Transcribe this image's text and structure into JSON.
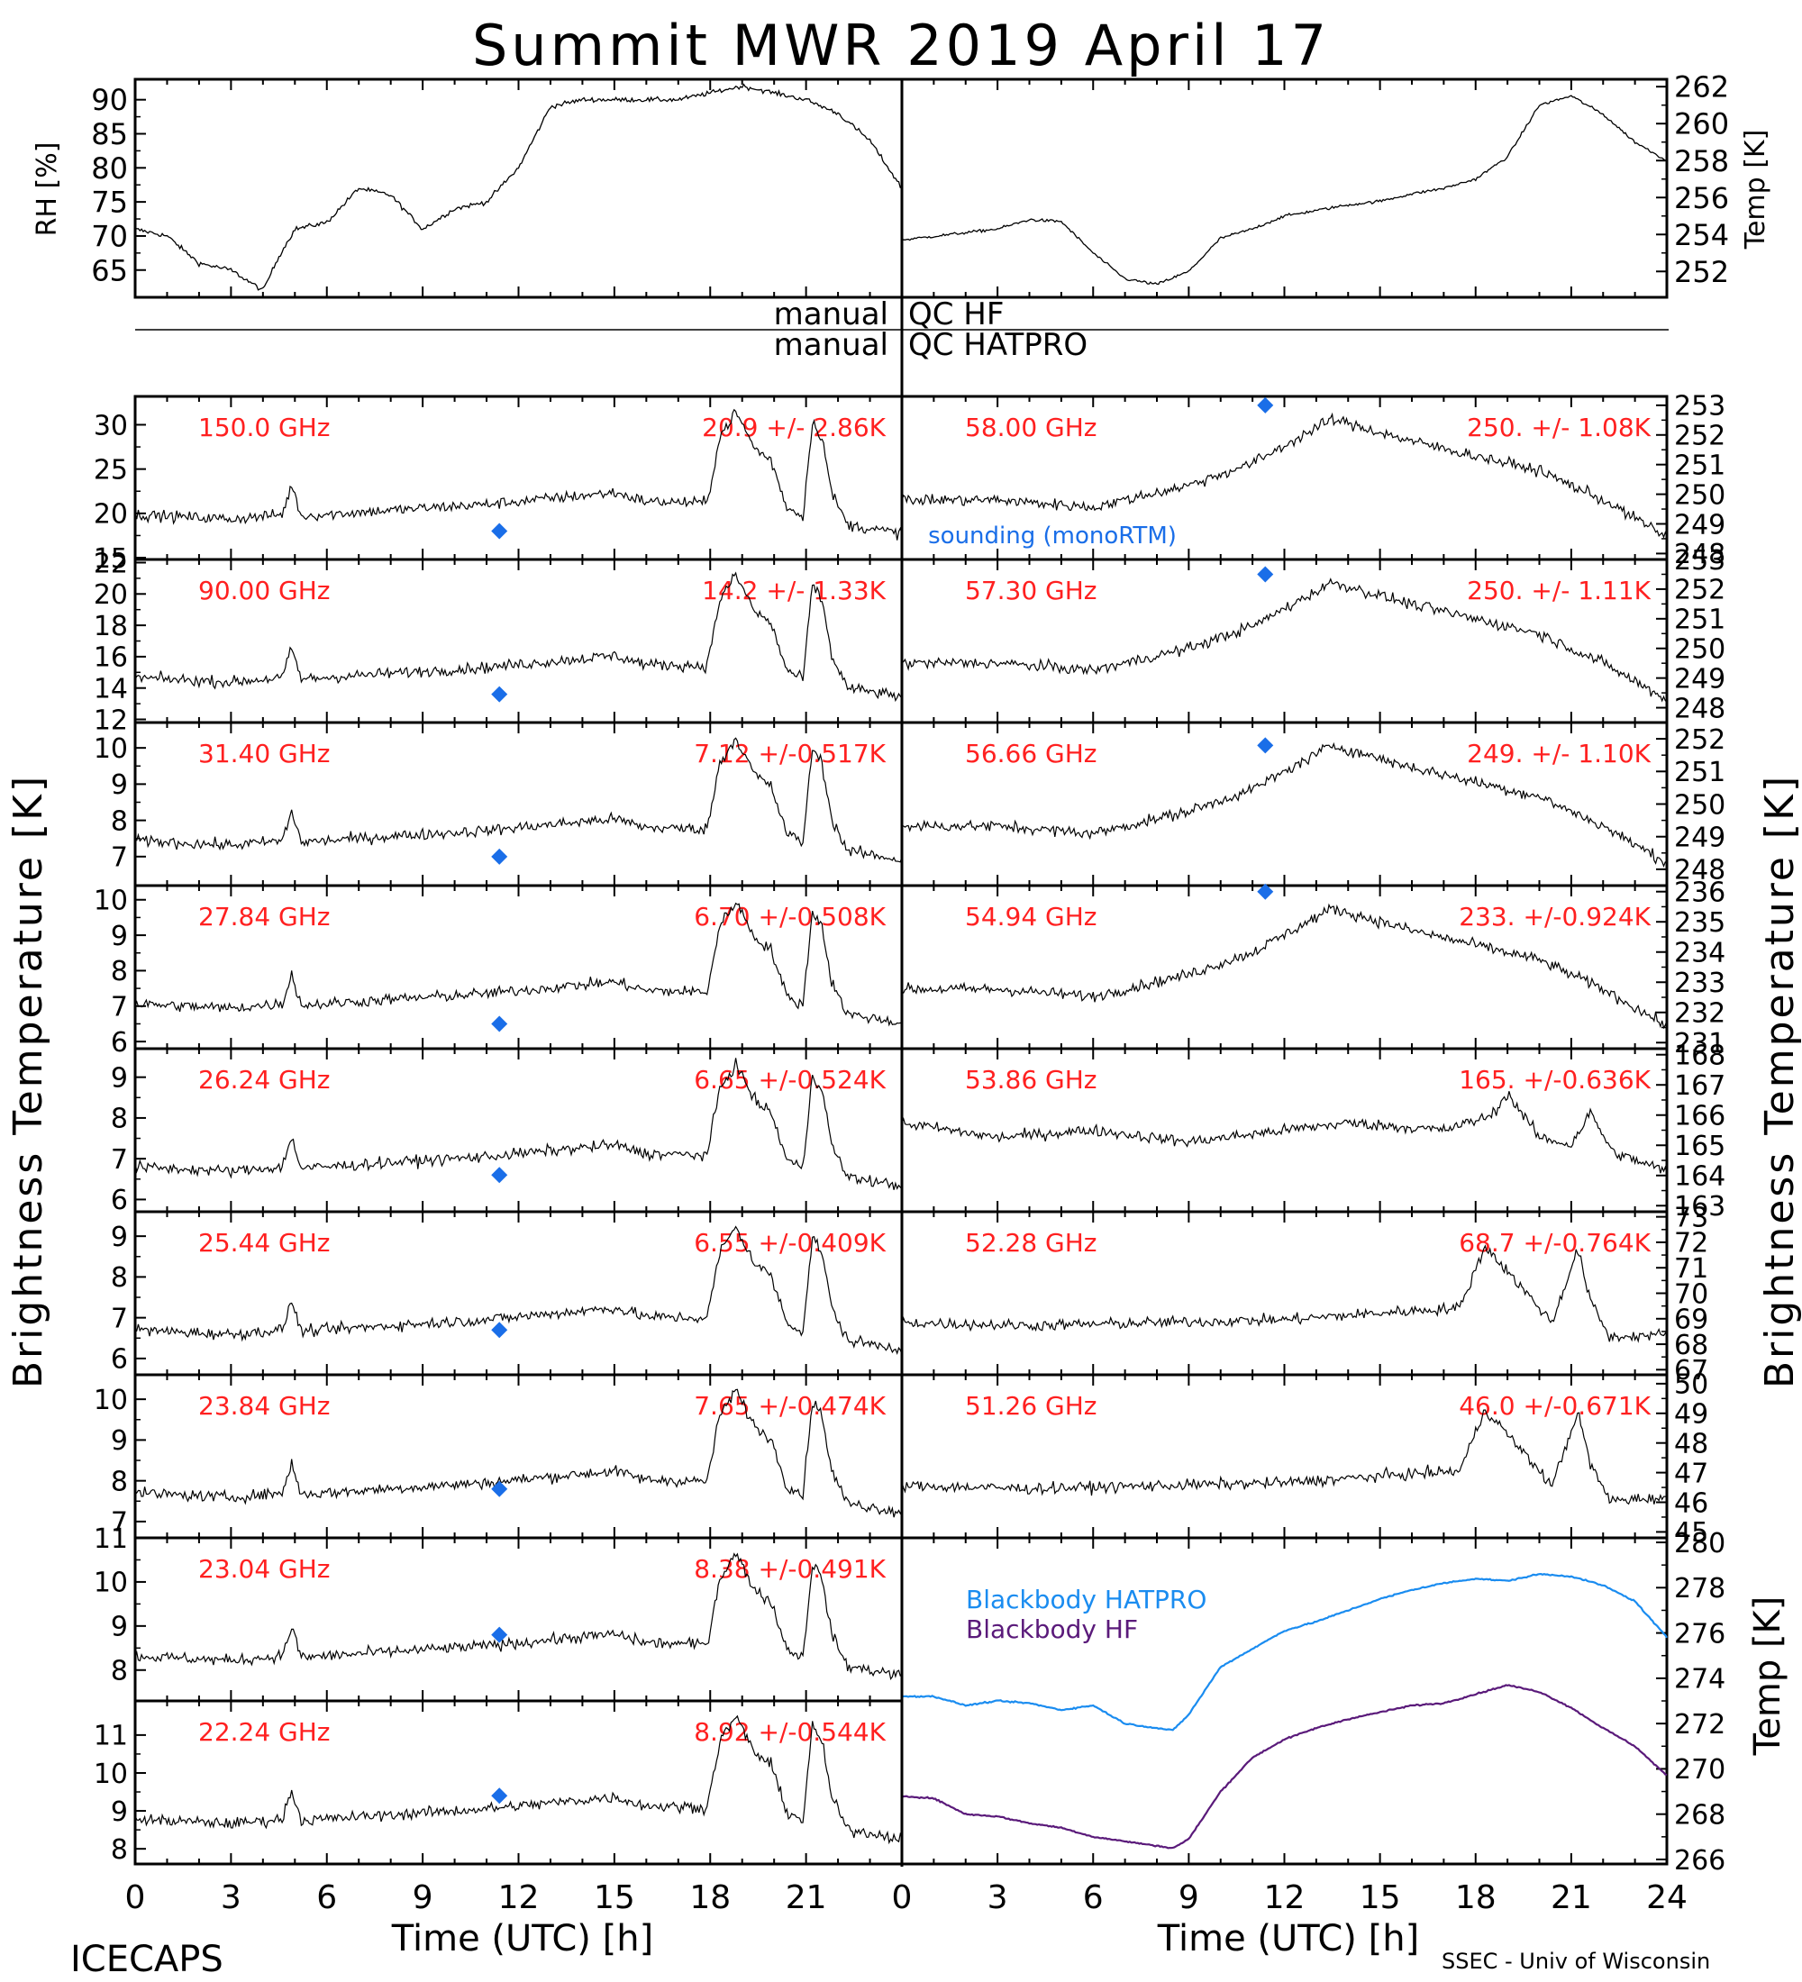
{
  "title": "Summit MWR 2019 April 17",
  "footer_left": "ICECAPS",
  "footer_right": "SSEC - Univ of Wisconsin",
  "x_axis": {
    "label": "Time (UTC) [h]",
    "ticks_left": [
      "0",
      "3",
      "6",
      "9",
      "12",
      "15",
      "18",
      "21"
    ],
    "ticks_right": [
      "0",
      "3",
      "6",
      "9",
      "12",
      "15",
      "18",
      "21",
      "24"
    ],
    "range": [
      0,
      24
    ]
  },
  "left_ylabel": "Brightness Temperature [K]",
  "right_ylabel": "Brightness Temperature [K]",
  "colors": {
    "line": "#000000",
    "annotation": "#ff2020",
    "marker": "#1a6ee8",
    "hatpro": "#1a8cf0",
    "hf": "#5a1a7a"
  },
  "top_panel": {
    "left": {
      "ylabel": "RH [%]",
      "ylim": [
        61,
        93
      ],
      "ticks": [
        "65",
        "70",
        "75",
        "80",
        "85",
        "90"
      ]
    },
    "right": {
      "ylabel": "Temp [K]",
      "ylim": [
        250.6,
        262.4
      ],
      "ticks": [
        "252",
        "254",
        "256",
        "258",
        "260",
        "262"
      ]
    }
  },
  "qc_labels": {
    "hf_prefix": "manual",
    "hf_suffix": "QC HF",
    "hatpro_prefix": "manual",
    "hatpro_suffix": "QC HATPRO"
  },
  "sounding_label": "sounding (monoRTM)",
  "blackbody": {
    "ylabel": "Temp [K]",
    "ylim": [
      265.8,
      280.2
    ],
    "ticks": [
      "266",
      "268",
      "270",
      "272",
      "274",
      "276",
      "278",
      "280"
    ],
    "hatpro_label": "Blackbody HATPRO",
    "hf_label": "Blackbody HF"
  },
  "channels_left": [
    {
      "freq": "150.0 GHz",
      "stat": "20.9 +/-  2.86K",
      "ylim": [
        14.8,
        33.2
      ],
      "ticks": [
        "15",
        "20",
        "25",
        "30"
      ],
      "sounding": 18.0
    },
    {
      "freq": "90.00 GHz",
      "stat": "14.2 +/-  1.33K",
      "ylim": [
        11.8,
        22.2
      ],
      "ticks": [
        "12",
        "14",
        "16",
        "18",
        "20",
        "22"
      ],
      "sounding": 13.6
    },
    {
      "freq": "31.40 GHz",
      "stat": "7.12 +/-0.517K",
      "ylim": [
        6.2,
        10.7
      ],
      "ticks": [
        "7",
        "8",
        "9",
        "10"
      ],
      "sounding": 7.0
    },
    {
      "freq": "27.84 GHz",
      "stat": "6.70 +/-0.508K",
      "ylim": [
        5.8,
        10.4
      ],
      "ticks": [
        "6",
        "7",
        "8",
        "9",
        "10"
      ],
      "sounding": 6.5
    },
    {
      "freq": "26.24 GHz",
      "stat": "6.65 +/-0.524K",
      "ylim": [
        5.7,
        9.7
      ],
      "ticks": [
        "6",
        "7",
        "8",
        "9"
      ],
      "sounding": 6.6
    },
    {
      "freq": "25.44 GHz",
      "stat": "6.55 +/-0.409K",
      "ylim": [
        5.6,
        9.6
      ],
      "ticks": [
        "6",
        "7",
        "8",
        "9"
      ],
      "sounding": 6.7
    },
    {
      "freq": "23.84 GHz",
      "stat": "7.65 +/-0.474K",
      "ylim": [
        6.6,
        10.6
      ],
      "ticks": [
        "7",
        "8",
        "9",
        "10"
      ],
      "sounding": 7.8
    },
    {
      "freq": "23.04 GHz",
      "stat": "8.38 +/-0.491K",
      "ylim": [
        7.3,
        11.0
      ],
      "ticks": [
        "8",
        "9",
        "10",
        "11"
      ],
      "sounding": 8.8
    },
    {
      "freq": "22.24 GHz",
      "stat": "8.92 +/-0.544K",
      "ylim": [
        7.6,
        11.9
      ],
      "ticks": [
        "8",
        "9",
        "10",
        "11"
      ],
      "sounding": 9.4
    }
  ],
  "channels_right": [
    {
      "freq": "58.00 GHz",
      "stat": "250. +/- 1.08K",
      "ylim": [
        247.8,
        253.3
      ],
      "ticks": [
        "248",
        "249",
        "250",
        "251",
        "252",
        "253"
      ],
      "sounding": 253.0
    },
    {
      "freq": "57.30 GHz",
      "stat": "250. +/- 1.11K",
      "ylim": [
        247.5,
        253.0
      ],
      "ticks": [
        "248",
        "249",
        "250",
        "251",
        "252",
        "253"
      ],
      "sounding": 252.5
    },
    {
      "freq": "56.66 GHz",
      "stat": "249. +/- 1.10K",
      "ylim": [
        247.5,
        252.5
      ],
      "ticks": [
        "248",
        "249",
        "250",
        "251",
        "252"
      ],
      "sounding": 251.8
    },
    {
      "freq": "54.94 GHz",
      "stat": "233. +/-0.924K",
      "ylim": [
        230.8,
        236.2
      ],
      "ticks": [
        "231",
        "232",
        "233",
        "234",
        "235",
        "236"
      ],
      "sounding": 236.0
    },
    {
      "freq": "53.86 GHz",
      "stat": "165. +/-0.636K",
      "ylim": [
        162.8,
        168.2
      ],
      "ticks": [
        "163",
        "164",
        "165",
        "166",
        "167",
        "168"
      ],
      "sounding": null
    },
    {
      "freq": "52.28 GHz",
      "stat": "68.7 +/-0.764K",
      "ylim": [
        66.8,
        73.2
      ],
      "ticks": [
        "67",
        "68",
        "69",
        "70",
        "71",
        "72",
        "73"
      ],
      "sounding": null
    },
    {
      "freq": "51.26 GHz",
      "stat": "46.0 +/-0.671K",
      "ylim": [
        44.8,
        50.3
      ],
      "ticks": [
        "45",
        "46",
        "47",
        "48",
        "49",
        "50"
      ],
      "sounding": null
    }
  ],
  "chart_data": [
    {
      "type": "line",
      "panel": "relative-humidity",
      "ylabel": "RH [%]",
      "ylim": [
        61,
        93
      ],
      "x": [
        0,
        1,
        2,
        3,
        4,
        4.5,
        5,
        6,
        7,
        8,
        9,
        10,
        11,
        12,
        13,
        14,
        15,
        16,
        17,
        18,
        19,
        20,
        21,
        22,
        23,
        24
      ],
      "values": [
        71,
        70,
        66,
        65,
        62,
        67,
        71,
        72,
        77,
        76,
        71,
        74,
        75,
        80,
        89,
        90,
        90,
        90,
        90,
        91,
        92,
        91,
        90,
        88,
        84,
        77
      ]
    },
    {
      "type": "line",
      "panel": "air-temperature",
      "ylabel": "Temp [K]",
      "ylim": [
        250.6,
        262.4
      ],
      "x": [
        0,
        1,
        2,
        3,
        4,
        5,
        6,
        7,
        8,
        9,
        10,
        11,
        12,
        13,
        14,
        15,
        16,
        17,
        18,
        19,
        20,
        21,
        22,
        23,
        24
      ],
      "values": [
        253.7,
        253.9,
        254.1,
        254.3,
        254.8,
        254.7,
        253.0,
        251.6,
        251.3,
        252.0,
        253.8,
        254.3,
        255.0,
        255.3,
        255.6,
        255.8,
        256.2,
        256.5,
        257.0,
        258.2,
        261.0,
        261.5,
        260.5,
        259.0,
        258.0
      ]
    },
    {
      "type": "line",
      "panel": "blackbody",
      "ylabel": "Temp [K]",
      "ylim": [
        265.8,
        280.2
      ],
      "x": [
        0,
        1,
        2,
        3,
        4,
        5,
        6,
        7,
        8,
        8.5,
        9,
        10,
        11,
        12,
        13,
        14,
        15,
        16,
        17,
        18,
        19,
        20,
        21,
        22,
        23,
        24
      ],
      "series": [
        {
          "name": "Blackbody HATPRO",
          "values": [
            273.2,
            273.2,
            272.8,
            273.0,
            272.9,
            272.6,
            272.8,
            272.0,
            271.8,
            271.7,
            272.4,
            274.5,
            275.3,
            276.1,
            276.5,
            277.0,
            277.5,
            277.9,
            278.2,
            278.4,
            278.3,
            278.6,
            278.5,
            278.1,
            277.4,
            275.8
          ]
        },
        {
          "name": "Blackbody HF",
          "values": [
            268.8,
            268.7,
            268.0,
            267.9,
            267.6,
            267.4,
            267.0,
            266.8,
            266.6,
            266.5,
            266.9,
            269.0,
            270.5,
            271.3,
            271.8,
            272.2,
            272.5,
            272.8,
            272.9,
            273.3,
            273.7,
            273.4,
            272.7,
            271.8,
            271.0,
            269.7
          ]
        }
      ]
    }
  ]
}
